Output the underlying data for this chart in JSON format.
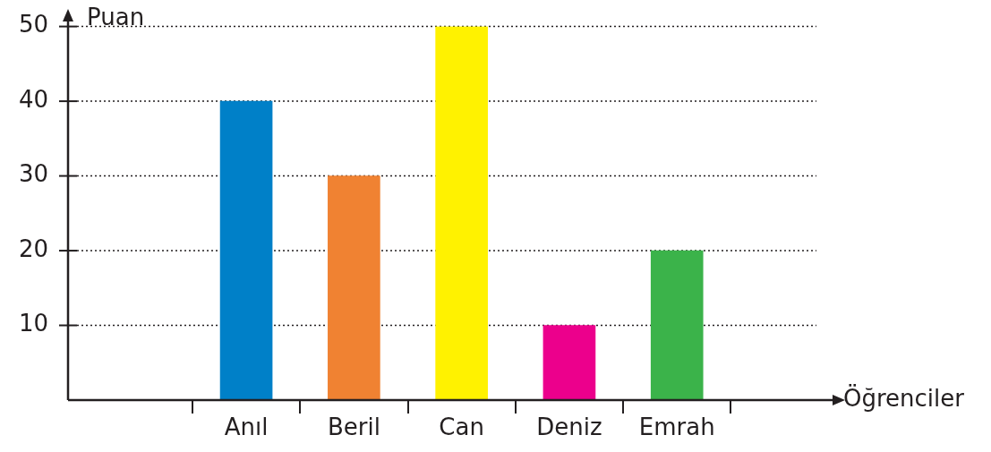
{
  "chart_data": {
    "type": "bar",
    "xlabel": "Öğrenciler",
    "ylabel": "Puan",
    "categories": [
      "Anıl",
      "Beril",
      "Can",
      "Deniz",
      "Emrah"
    ],
    "values": [
      40,
      30,
      50,
      10,
      20
    ],
    "colors": [
      "#0080c8",
      "#f08232",
      "#fff200",
      "#ec008c",
      "#3bb34a"
    ],
    "ylim": [
      0,
      50
    ],
    "yticks": [
      10,
      20,
      30,
      40,
      50
    ],
    "grid": "y"
  }
}
